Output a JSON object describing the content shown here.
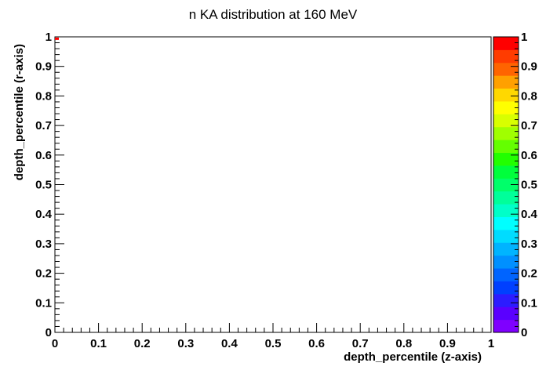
{
  "chart_data": {
    "type": "heatmap",
    "title": "n KA distribution at 160 MeV",
    "xlabel": "depth_percentile (z-axis)",
    "ylabel": "depth_percentile (r-axis)",
    "xlim": [
      0,
      1
    ],
    "ylim": [
      0,
      1
    ],
    "x_ticks": [
      "0",
      "0.1",
      "0.2",
      "0.3",
      "0.4",
      "0.5",
      "0.6",
      "0.7",
      "0.8",
      "0.9",
      "1"
    ],
    "y_ticks": [
      "0",
      "0.1",
      "0.2",
      "0.3",
      "0.4",
      "0.5",
      "0.6",
      "0.7",
      "0.8",
      "0.9",
      "1"
    ],
    "colorbar": {
      "range": [
        0,
        1
      ],
      "tick_labels": [
        "0",
        "0.1",
        "0.2",
        "0.3",
        "0.4",
        "0.5",
        "0.6",
        "0.7",
        "0.8",
        "0.9",
        "1"
      ],
      "colors": [
        "#7f00ff",
        "#5a00ff",
        "#2c1cff",
        "#0040ff",
        "#0064ff",
        "#0090ff",
        "#00b4ff",
        "#00dcff",
        "#00ffff",
        "#00ffc8",
        "#00ff9a",
        "#00ff6a",
        "#00ff3c",
        "#22ff00",
        "#64ff00",
        "#a0ff00",
        "#d8ff00",
        "#ffff00",
        "#ffd800",
        "#ffa000",
        "#ff6400",
        "#ff3c00",
        "#ff0000"
      ]
    },
    "cells": [
      {
        "x": 0.0,
        "y": 0.995,
        "value": 1
      }
    ]
  }
}
